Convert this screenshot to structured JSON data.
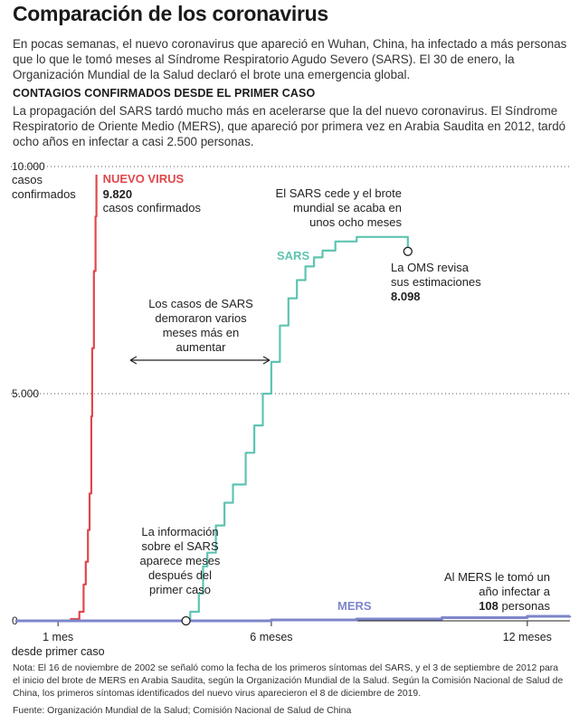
{
  "title": "Comparación de los coronavirus",
  "intro": "En pocas semanas, el nuevo coronavirus que apareció en Wuhan, China, ha infectado a más personas que lo que le tomó meses al Síndrome Respiratorio Agudo Severo (SARS). El 30 de enero, la Organización Mundial de la Salud declaró el brote una emergencia global.",
  "section_title": "CONTAGIOS CONFIRMADOS DESDE EL PRIMER CASO",
  "lead": "La propagación del SARS tardó mucho más en acelerarse que la del nuevo coronavirus. El Síndrome Respiratorio de Oriente Medio (MERS), que apareció por primera vez en Arabia Saudita en 2012, tardó ocho años en infectar a casi 2.500 personas.",
  "note": "Nota: El 16 de noviembre de 2002 se señaló como la fecha de los primeros síntomas del SARS, y el 3 de septiembre de 2012 para el inicio del brote de MERS en Arabia Saudita, según la Organización Mundial de la Salud. Según la Comisión Nacional de Salud de China, los primeros síntomas identificados del nuevo virus aparecieron el 8 de diciembre de 2019.",
  "source": "Fuente: Organización Mundial de la Salud; Comisión Nacional de Salud de China",
  "colors": {
    "new_virus": "#e0474c",
    "sars": "#5ec4b0",
    "mers": "#7d86c9",
    "axis": "#222222",
    "grid": "#555555"
  },
  "chart_data": {
    "type": "line",
    "x_unit": "meses desde el primer caso",
    "xlim": [
      0,
      13
    ],
    "ylim": [
      0,
      10000
    ],
    "y_ticks": [
      {
        "value": 10000,
        "label": "10.000",
        "sublabel": [
          "casos",
          "confirmados"
        ]
      },
      {
        "value": 5000,
        "label": "5.000"
      },
      {
        "value": 0,
        "label": "0"
      }
    ],
    "x_ticks": [
      {
        "value": 1,
        "label": "1 mes",
        "sublabel": "desde primer caso"
      },
      {
        "value": 6,
        "label": "6 meses"
      },
      {
        "value": 12,
        "label": "12 meses"
      }
    ],
    "series": [
      {
        "name": "NUEVO VIRUS",
        "key": "new_virus",
        "x": [
          0,
          1.1,
          1.3,
          1.5,
          1.6,
          1.65,
          1.7,
          1.74,
          1.78,
          1.8,
          1.84,
          1.88,
          1.9
        ],
        "y": [
          0,
          0,
          40,
          200,
          800,
          1300,
          2000,
          2800,
          4500,
          6000,
          7700,
          8900,
          9820
        ]
      },
      {
        "name": "SARS",
        "key": "sars",
        "x": [
          0,
          4,
          4.1,
          4.3,
          4.4,
          4.5,
          4.7,
          4.9,
          5.1,
          5.4,
          5.6,
          5.8,
          6,
          6.2,
          6.4,
          6.6,
          6.8,
          7,
          7.2,
          7.5,
          8,
          8.5,
          9,
          9.2
        ],
        "y": [
          0,
          0,
          200,
          600,
          1200,
          1500,
          2100,
          2600,
          3000,
          3700,
          4300,
          5000,
          5700,
          6500,
          7100,
          7500,
          7800,
          8000,
          8150,
          8350,
          8450,
          8450,
          8450,
          8098
        ]
      },
      {
        "name": "MERS",
        "key": "mers",
        "x": [
          0,
          6,
          8,
          10,
          12,
          13
        ],
        "y": [
          0,
          20,
          40,
          70,
          100,
          108
        ]
      }
    ],
    "labels": {
      "new_virus_value": "9.820",
      "new_virus_unit": "casos confirmados",
      "sars_end_value": "8.098",
      "mers_value": "108"
    },
    "annotations": {
      "sars_peak": [
        "El SARS cede y el brote",
        "mundial se acaba en",
        "unos ocho meses"
      ],
      "oms_revisa": [
        "La OMS revisa",
        "sus estimaciones"
      ],
      "delay": [
        "Los casos de SARS",
        "demoraron varios",
        "meses más en",
        "aumentar"
      ],
      "sars_info": [
        "La información",
        "sobre el  SARS",
        "aparece meses",
        "después del",
        "primer caso"
      ],
      "mers_note": [
        "Al MERS le tomó un",
        "año infectar a"
      ],
      "mers_unit": "personas"
    }
  }
}
